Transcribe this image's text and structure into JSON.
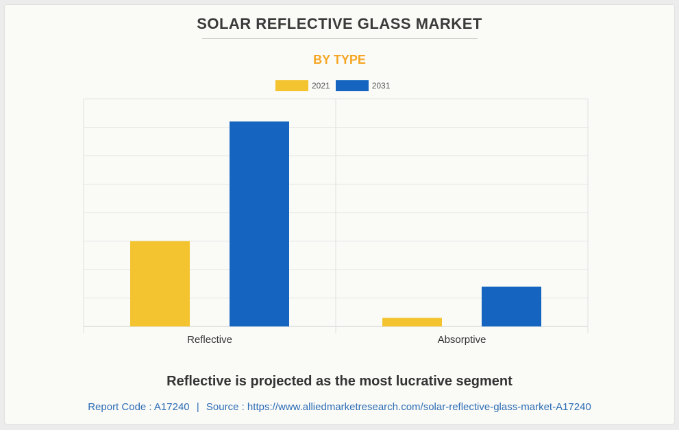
{
  "header": {
    "title": "SOLAR REFLECTIVE GLASS MARKET",
    "subtitle": "BY TYPE"
  },
  "colors": {
    "series_2021": "#f4c430",
    "series_2031": "#1565c0",
    "subtitle": "#f5a623",
    "footer_text": "#2d6db5"
  },
  "chart_data": {
    "type": "bar",
    "categories": [
      "Reflective",
      "Absorptive"
    ],
    "series": [
      {
        "name": "2021",
        "values": [
          3.0,
          0.3
        ]
      },
      {
        "name": "2031",
        "values": [
          7.2,
          1.4
        ]
      }
    ],
    "ylim": [
      0,
      8
    ],
    "grid": true,
    "legend": "top-center"
  },
  "footer": {
    "headline": "Reflective is projected as the most lucrative segment",
    "report_code": "Report Code : A17240",
    "separator": "|",
    "source": "Source : https://www.alliedmarketresearch.com/solar-reflective-glass-market-A17240"
  }
}
